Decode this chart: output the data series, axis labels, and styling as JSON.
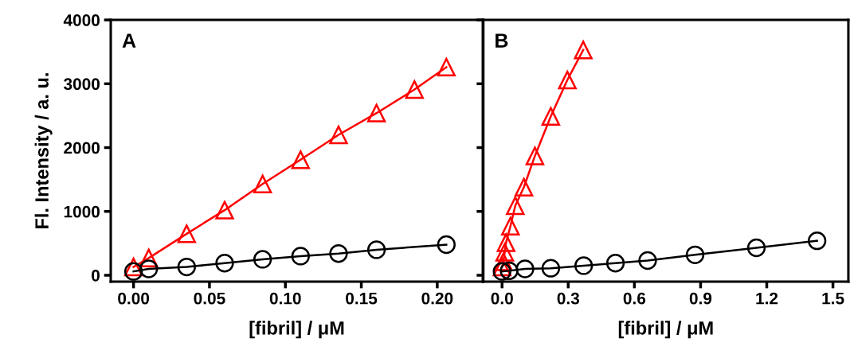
{
  "chart_data": [
    {
      "type": "line",
      "annotations": [
        "A"
      ],
      "xlabel": "[fibril] / μM",
      "ylabel": "Fl. Intensity / a. u.",
      "xlim": [
        -0.015,
        0.23
      ],
      "ylim": [
        -100,
        4000
      ],
      "xticks": [
        {
          "value": 0,
          "label": "0.00"
        },
        0.05,
        {
          "value": 0.1,
          "label": "0.10"
        },
        0.15,
        {
          "value": 0.2,
          "label": "0.20"
        }
      ],
      "yticks": [
        0,
        1000,
        2000,
        3000,
        4000
      ],
      "grid": false,
      "line_style": "solid",
      "series": [
        {
          "color": "#ff0000",
          "marker": "triangle",
          "x": [
            0,
            0.01,
            0.035,
            0.06,
            0.085,
            0.11,
            0.135,
            0.16,
            0.185,
            0.206
          ],
          "values": [
            130,
            270,
            650,
            1020,
            1430,
            1810,
            2200,
            2540,
            2910,
            3260
          ]
        },
        {
          "color": "#000000",
          "marker": "circle",
          "x": [
            0,
            0.01,
            0.035,
            0.06,
            0.085,
            0.11,
            0.135,
            0.16,
            0.206
          ],
          "values": [
            60,
            100,
            130,
            190,
            250,
            300,
            340,
            400,
            480
          ]
        }
      ]
    },
    {
      "type": "line",
      "annotations": [
        "B"
      ],
      "xlabel": "[fibril] / μM",
      "xlim": [
        -0.085,
        1.57
      ],
      "ylim": [
        -100,
        4000
      ],
      "xticks": [
        {
          "value": 0,
          "label": "0.0"
        },
        0.3,
        0.6,
        0.9,
        1.2,
        1.5
      ],
      "yticks": [
        0,
        1000,
        2000,
        3000,
        4000
      ],
      "tick_labels": "x",
      "grid": false,
      "line_style": "solid",
      "series": [
        {
          "color": "#ff0000",
          "marker": "triangle",
          "x": [
            0,
            0.006,
            0.012,
            0.018,
            0.038,
            0.06,
            0.099,
            0.149,
            0.221,
            0.296,
            0.368
          ],
          "values": [
            130,
            210,
            360,
            510,
            770,
            1090,
            1380,
            1870,
            2490,
            3060,
            3530
          ]
        },
        {
          "color": "#000000",
          "marker": "circle",
          "x": [
            0,
            0.032,
            0.104,
            0.221,
            0.37,
            0.514,
            0.66,
            0.875,
            1.153,
            1.428
          ],
          "values": [
            60,
            70,
            100,
            110,
            150,
            190,
            230,
            320,
            430,
            540
          ]
        }
      ]
    }
  ]
}
